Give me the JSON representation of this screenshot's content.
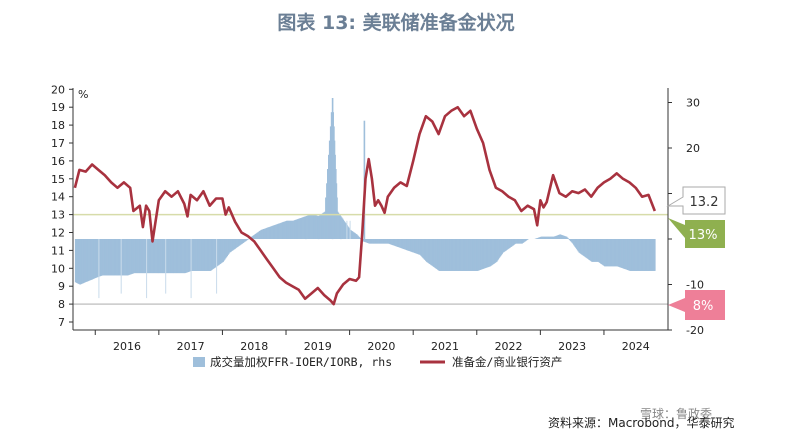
{
  "title": "图表 13: 美联储准备金状况",
  "source": "资料来源：Macrobond，华泰研究",
  "watermark": "雪球：鲁政委",
  "chart_data": {
    "type": "line",
    "left_axis": {
      "unit": "%",
      "ylim": [
        7,
        20.5
      ],
      "ticks": [
        7,
        8,
        9,
        10,
        11,
        12,
        13,
        14,
        15,
        16,
        17,
        18,
        19,
        20
      ]
    },
    "right_axis": {
      "ylim": [
        -22.5,
        32.5
      ],
      "ticks": [
        "30",
        "20",
        "10",
        "0",
        "-10",
        "-20"
      ]
    },
    "x_labels": [
      "2016",
      "2017",
      "2018",
      "2019",
      "2020",
      "2021",
      "2022",
      "2023",
      "2024"
    ],
    "x_range": [
      2015.65,
      2024.85
    ],
    "series": [
      {
        "name": "成交量加权FFR-IOER/IORB, rhs",
        "type": "bar",
        "axis": "right",
        "color": "#9fbfdb",
        "points": [
          [
            2015.68,
            -9.5
          ],
          [
            2015.75,
            -10
          ],
          [
            2015.83,
            -9.5
          ],
          [
            2015.92,
            -9
          ],
          [
            2016.0,
            -8.5
          ],
          [
            2016.1,
            -8
          ],
          [
            2016.2,
            -8
          ],
          [
            2016.3,
            -8
          ],
          [
            2016.4,
            -8
          ],
          [
            2016.5,
            -8
          ],
          [
            2016.6,
            -7.5
          ],
          [
            2016.7,
            -7.5
          ],
          [
            2016.8,
            -7.5
          ],
          [
            2016.9,
            -7.5
          ],
          [
            2017.0,
            -7.5
          ],
          [
            2017.1,
            -7.5
          ],
          [
            2017.2,
            -7.5
          ],
          [
            2017.3,
            -7.5
          ],
          [
            2017.4,
            -7.5
          ],
          [
            2017.5,
            -7
          ],
          [
            2017.6,
            -7
          ],
          [
            2017.7,
            -7
          ],
          [
            2017.8,
            -7
          ],
          [
            2017.9,
            -6
          ],
          [
            2018.0,
            -5
          ],
          [
            2018.1,
            -3
          ],
          [
            2018.2,
            -2
          ],
          [
            2018.3,
            -1
          ],
          [
            2018.4,
            0
          ],
          [
            2018.5,
            1
          ],
          [
            2018.6,
            2
          ],
          [
            2018.7,
            2.5
          ],
          [
            2018.8,
            3
          ],
          [
            2018.9,
            3.5
          ],
          [
            2019.0,
            4
          ],
          [
            2019.1,
            4
          ],
          [
            2019.2,
            4.5
          ],
          [
            2019.3,
            5
          ],
          [
            2019.4,
            5.5
          ],
          [
            2019.5,
            5
          ],
          [
            2019.6,
            6
          ],
          [
            2019.72,
            31
          ],
          [
            2019.8,
            6
          ],
          [
            2019.9,
            4
          ],
          [
            2020.0,
            2
          ],
          [
            2020.1,
            1
          ],
          [
            2020.2,
            -0.5
          ],
          [
            2020.3,
            -1
          ],
          [
            2020.4,
            -1
          ],
          [
            2020.5,
            -1
          ],
          [
            2020.6,
            -1
          ],
          [
            2020.7,
            -1.5
          ],
          [
            2020.8,
            -2
          ],
          [
            2020.9,
            -2.5
          ],
          [
            2021.0,
            -3
          ],
          [
            2021.1,
            -3.5
          ],
          [
            2021.2,
            -5
          ],
          [
            2021.3,
            -6
          ],
          [
            2021.4,
            -7
          ],
          [
            2021.5,
            -7
          ],
          [
            2021.6,
            -7
          ],
          [
            2021.7,
            -7
          ],
          [
            2021.8,
            -7
          ],
          [
            2021.9,
            -7
          ],
          [
            2022.0,
            -7
          ],
          [
            2022.1,
            -6.5
          ],
          [
            2022.2,
            -6
          ],
          [
            2022.3,
            -5
          ],
          [
            2022.4,
            -3
          ],
          [
            2022.5,
            -2
          ],
          [
            2022.6,
            -1
          ],
          [
            2022.7,
            -1
          ],
          [
            2022.8,
            0
          ],
          [
            2022.9,
            0
          ],
          [
            2023.0,
            0.5
          ],
          [
            2023.1,
            0.5
          ],
          [
            2023.2,
            0.5
          ],
          [
            2023.3,
            1
          ],
          [
            2023.4,
            0.5
          ],
          [
            2023.5,
            -1
          ],
          [
            2023.6,
            -3
          ],
          [
            2023.7,
            -4
          ],
          [
            2023.8,
            -5
          ],
          [
            2023.9,
            -5
          ],
          [
            2024.0,
            -6
          ],
          [
            2024.1,
            -6
          ],
          [
            2024.2,
            -6
          ],
          [
            2024.3,
            -6.5
          ],
          [
            2024.4,
            -7
          ],
          [
            2024.5,
            -7
          ],
          [
            2024.6,
            -7
          ],
          [
            2024.7,
            -7
          ],
          [
            2024.8,
            -7
          ]
        ]
      },
      {
        "name": "准备金/商业银行资产",
        "type": "line",
        "axis": "left",
        "color": "#a8323f",
        "points": [
          [
            2015.68,
            14.5
          ],
          [
            2015.75,
            15.5
          ],
          [
            2015.85,
            15.4
          ],
          [
            2015.95,
            15.8
          ],
          [
            2016.05,
            15.5
          ],
          [
            2016.15,
            15.2
          ],
          [
            2016.25,
            14.8
          ],
          [
            2016.35,
            14.5
          ],
          [
            2016.45,
            14.8
          ],
          [
            2016.55,
            14.5
          ],
          [
            2016.6,
            13.2
          ],
          [
            2016.7,
            13.5
          ],
          [
            2016.75,
            12.3
          ],
          [
            2016.8,
            13.5
          ],
          [
            2016.85,
            13.2
          ],
          [
            2016.9,
            11.5
          ],
          [
            2017.0,
            13.8
          ],
          [
            2017.1,
            14.3
          ],
          [
            2017.2,
            14.0
          ],
          [
            2017.3,
            14.3
          ],
          [
            2017.4,
            13.6
          ],
          [
            2017.45,
            12.9
          ],
          [
            2017.5,
            14.1
          ],
          [
            2017.6,
            13.8
          ],
          [
            2017.7,
            14.3
          ],
          [
            2017.8,
            13.5
          ],
          [
            2017.9,
            13.9
          ],
          [
            2018.0,
            13.9
          ],
          [
            2018.05,
            13.0
          ],
          [
            2018.1,
            13.4
          ],
          [
            2018.2,
            12.6
          ],
          [
            2018.3,
            12.0
          ],
          [
            2018.4,
            11.8
          ],
          [
            2018.5,
            11.5
          ],
          [
            2018.6,
            11.0
          ],
          [
            2018.7,
            10.5
          ],
          [
            2018.8,
            10.0
          ],
          [
            2018.9,
            9.5
          ],
          [
            2019.0,
            9.2
          ],
          [
            2019.1,
            9.0
          ],
          [
            2019.2,
            8.8
          ],
          [
            2019.3,
            8.3
          ],
          [
            2019.4,
            8.6
          ],
          [
            2019.5,
            8.9
          ],
          [
            2019.6,
            8.5
          ],
          [
            2019.7,
            8.2
          ],
          [
            2019.75,
            8.0
          ],
          [
            2019.8,
            8.6
          ],
          [
            2019.9,
            9.1
          ],
          [
            2020.0,
            9.4
          ],
          [
            2020.1,
            9.3
          ],
          [
            2020.15,
            9.5
          ],
          [
            2020.2,
            12.0
          ],
          [
            2020.25,
            15.0
          ],
          [
            2020.3,
            16.1
          ],
          [
            2020.35,
            15.0
          ],
          [
            2020.4,
            13.5
          ],
          [
            2020.45,
            13.8
          ],
          [
            2020.5,
            13.5
          ],
          [
            2020.55,
            13.1
          ],
          [
            2020.6,
            14.0
          ],
          [
            2020.7,
            14.5
          ],
          [
            2020.8,
            14.8
          ],
          [
            2020.9,
            14.6
          ],
          [
            2021.0,
            16.0
          ],
          [
            2021.1,
            17.5
          ],
          [
            2021.2,
            18.5
          ],
          [
            2021.3,
            18.2
          ],
          [
            2021.4,
            17.5
          ],
          [
            2021.5,
            18.5
          ],
          [
            2021.6,
            18.8
          ],
          [
            2021.7,
            19.0
          ],
          [
            2021.8,
            18.5
          ],
          [
            2021.9,
            18.8
          ],
          [
            2022.0,
            17.8
          ],
          [
            2022.1,
            17.0
          ],
          [
            2022.2,
            15.5
          ],
          [
            2022.3,
            14.5
          ],
          [
            2022.4,
            14.3
          ],
          [
            2022.5,
            14.0
          ],
          [
            2022.6,
            13.8
          ],
          [
            2022.7,
            13.2
          ],
          [
            2022.8,
            13.5
          ],
          [
            2022.9,
            13.3
          ],
          [
            2022.95,
            12.4
          ],
          [
            2023.0,
            13.8
          ],
          [
            2023.05,
            13.4
          ],
          [
            2023.1,
            13.7
          ],
          [
            2023.2,
            15.2
          ],
          [
            2023.3,
            14.2
          ],
          [
            2023.4,
            14.0
          ],
          [
            2023.5,
            14.3
          ],
          [
            2023.6,
            14.2
          ],
          [
            2023.7,
            14.4
          ],
          [
            2023.8,
            14.0
          ],
          [
            2023.9,
            14.5
          ],
          [
            2024.0,
            14.8
          ],
          [
            2024.1,
            15.0
          ],
          [
            2024.2,
            15.3
          ],
          [
            2024.3,
            15.0
          ],
          [
            2024.4,
            14.8
          ],
          [
            2024.5,
            14.5
          ],
          [
            2024.6,
            14.0
          ],
          [
            2024.7,
            14.1
          ],
          [
            2024.8,
            13.2
          ]
        ]
      }
    ],
    "reference_lines": [
      {
        "axis": "left",
        "value": 13,
        "color": "#d7dcaa",
        "callout": "13%",
        "callout_color": "#8fb04f"
      },
      {
        "axis": "left",
        "value": 8,
        "color": "#c8c8c8",
        "callout": "8%",
        "callout_color": "#ee7f98"
      }
    ],
    "last_value_label": "13.2",
    "grid": false,
    "legend_position": "bottom"
  }
}
